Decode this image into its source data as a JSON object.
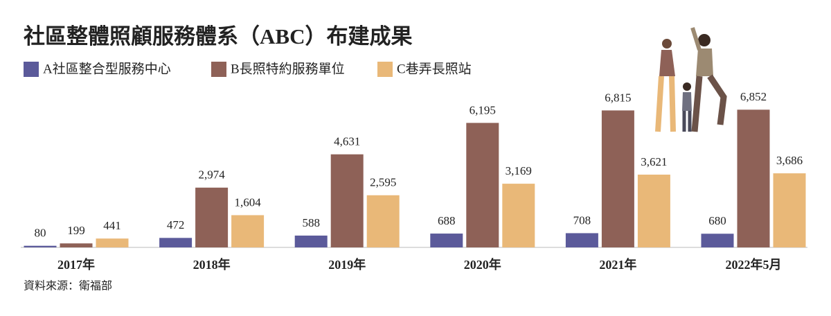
{
  "chart_data": {
    "type": "bar",
    "title": "社區整體照顧服務體系（ABC）布建成果",
    "source": "資料來源：衛福部",
    "categories": [
      "2017年",
      "2018年",
      "2019年",
      "2020年",
      "2021年",
      "2022年5月"
    ],
    "series": [
      {
        "name": "A社區整合型服務中心",
        "color": "#5b5a9a",
        "values": [
          80,
          472,
          588,
          688,
          708,
          680
        ],
        "value_labels": [
          "80",
          "472",
          "588",
          "688",
          "708",
          "680"
        ]
      },
      {
        "name": "B長照特約服務單位",
        "color": "#8e6157",
        "values": [
          199,
          2974,
          4631,
          6195,
          6815,
          6852
        ],
        "value_labels": [
          "199",
          "2,974",
          "4,631",
          "6,195",
          "6,815",
          "6,852"
        ]
      },
      {
        "name": "C巷弄長照站",
        "color": "#e9b878",
        "values": [
          441,
          1604,
          2595,
          3169,
          3621,
          3686
        ],
        "value_labels": [
          "441",
          "1,604",
          "2,595",
          "3,169",
          "3,621",
          "3,686"
        ]
      }
    ]
  }
}
